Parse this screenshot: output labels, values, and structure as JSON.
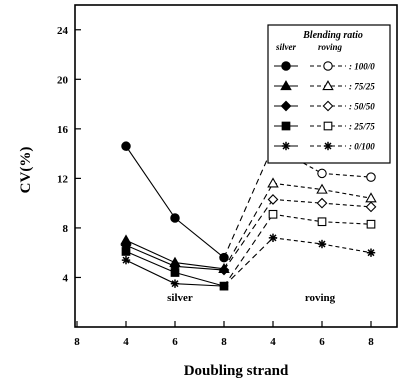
{
  "chart_data": {
    "type": "line",
    "xlabel": "Doubling strand",
    "ylabel": "CV(%)",
    "ylim": [
      0,
      26
    ],
    "y_ticks": [
      "4",
      "8",
      "12",
      "16",
      "20",
      "24"
    ],
    "x_ticks": [
      "8",
      "4",
      "6",
      "8",
      "4",
      "6",
      "8"
    ],
    "grid": false,
    "legend": {
      "title": "Blending ratio",
      "col_silver": "silver",
      "col_roving": "roving",
      "placement": "top-right"
    },
    "annotations": {
      "silver": "silver",
      "roving": "roving"
    },
    "groups": {
      "silver": {
        "x": [
          4,
          6,
          8
        ],
        "line_style": "solid",
        "marker_fill": "filled"
      },
      "roving": {
        "x": [
          4,
          6,
          8
        ],
        "line_style": "dashed",
        "marker_fill": "open"
      }
    },
    "series": [
      {
        "name": "100/0",
        "marker": "circle",
        "silver": [
          14.6,
          8.8,
          5.6
        ],
        "roving": [
          14.6,
          12.4,
          12.1
        ]
      },
      {
        "name": "75/25",
        "marker": "triangle",
        "silver": [
          7.0,
          5.2,
          4.7
        ],
        "roving": [
          11.6,
          11.1,
          10.4
        ]
      },
      {
        "name": "50/50",
        "marker": "diamond",
        "silver": [
          6.6,
          4.9,
          4.6
        ],
        "roving": [
          10.3,
          10.0,
          9.7
        ]
      },
      {
        "name": "25/75",
        "marker": "square",
        "silver": [
          6.1,
          4.4,
          3.3
        ],
        "roving": [
          9.1,
          8.5,
          8.3
        ]
      },
      {
        "name": "0/100",
        "marker": "star",
        "silver": [
          5.4,
          3.5,
          3.3
        ],
        "roving": [
          7.2,
          6.7,
          6.0
        ]
      }
    ],
    "legend_labels": [
      ": 100/0",
      ": 75/25",
      ": 50/50",
      ": 25/75",
      ": 0/100"
    ]
  }
}
